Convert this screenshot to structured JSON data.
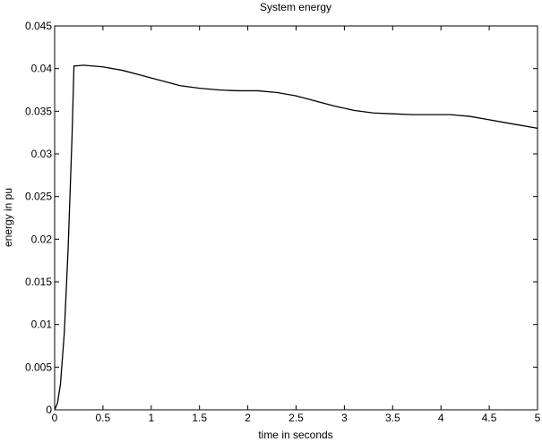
{
  "chart_data": {
    "type": "line",
    "title": "System energy",
    "xlabel": "time in seconds",
    "ylabel": "energy in pu",
    "xlim": [
      0,
      5
    ],
    "ylim": [
      0,
      0.045
    ],
    "xticks": [
      0,
      0.5,
      1,
      1.5,
      2,
      2.5,
      3,
      3.5,
      4,
      4.5,
      5
    ],
    "xtick_labels": [
      "0",
      "0.5",
      "1",
      "1.5",
      "2",
      "2.5",
      "3",
      "3.5",
      "4",
      "4.5",
      "5"
    ],
    "yticks": [
      0,
      0.005,
      0.01,
      0.015,
      0.02,
      0.025,
      0.03,
      0.035,
      0.04,
      0.045
    ],
    "ytick_labels": [
      "0",
      "0.005",
      "0.01",
      "0.015",
      "0.02",
      "0.025",
      "0.03",
      "0.035",
      "0.04",
      "0.045"
    ],
    "grid": false,
    "line_color": "#000000",
    "series": [
      {
        "x": [
          0,
          0.03,
          0.06,
          0.1,
          0.14,
          0.18,
          0.2,
          0.3,
          0.5,
          0.7,
          0.9,
          1.1,
          1.3,
          1.5,
          1.7,
          1.9,
          2.1,
          2.3,
          2.5,
          2.7,
          2.9,
          3.1,
          3.3,
          3.5,
          3.7,
          3.9,
          4.1,
          4.3,
          4.5,
          4.7,
          5.0
        ],
        "y": [
          0,
          0.0008,
          0.003,
          0.009,
          0.019,
          0.032,
          0.0403,
          0.0404,
          0.0402,
          0.0398,
          0.0392,
          0.0386,
          0.038,
          0.0377,
          0.0375,
          0.0374,
          0.0374,
          0.0372,
          0.0368,
          0.0362,
          0.0356,
          0.0351,
          0.0348,
          0.0347,
          0.0346,
          0.0346,
          0.0346,
          0.0344,
          0.034,
          0.0336,
          0.033
        ]
      }
    ]
  }
}
